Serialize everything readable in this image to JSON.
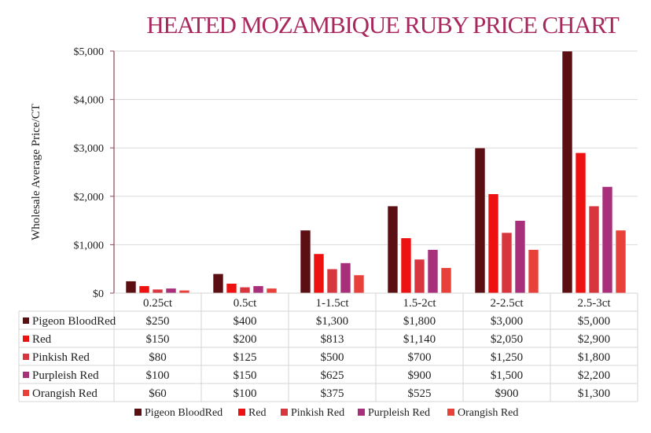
{
  "chart_data": {
    "type": "bar",
    "title": "HEATED MOZAMBIQUE RUBY PRICE CHART",
    "xlabel": "",
    "ylabel": "Wholesale Average Price/CT",
    "ylim": [
      0,
      5000
    ],
    "yticks": [
      "$0",
      "$1,000",
      "$2,000",
      "$3,000",
      "$4,000",
      "$5,000"
    ],
    "grid": true,
    "legend": "bottom",
    "categories": [
      "0.25ct",
      "0.5ct",
      "1-1.5ct",
      "1.5-2ct",
      "2-2.5ct",
      "2.5-3ct"
    ],
    "series": [
      {
        "name": "Pigeon BloodRed",
        "color": "#5c0f12",
        "values": [
          250,
          400,
          1300,
          1800,
          3000,
          5000
        ],
        "labels": [
          "$250",
          "$400",
          "$1,300",
          "$1,800",
          "$3,000",
          "$5,000"
        ]
      },
      {
        "name": "Red",
        "color": "#ee1111",
        "values": [
          150,
          200,
          813,
          1140,
          2050,
          2900
        ],
        "labels": [
          "$150",
          "$200",
          "$813",
          "$1,140",
          "$2,050",
          "$2,900"
        ]
      },
      {
        "name": "Pinkish Red",
        "color": "#d8363f",
        "values": [
          80,
          125,
          500,
          700,
          1250,
          1800
        ],
        "labels": [
          "$80",
          "$125",
          "$500",
          "$700",
          "$1,250",
          "$1,800"
        ]
      },
      {
        "name": "Purpleish Red",
        "color": "#a8307a",
        "values": [
          100,
          150,
          625,
          900,
          1500,
          2200
        ],
        "labels": [
          "$100",
          "$150",
          "$625",
          "$900",
          "$1,500",
          "$2,200"
        ]
      },
      {
        "name": "Orangish Red",
        "color": "#e8413a",
        "values": [
          60,
          100,
          375,
          525,
          900,
          1300
        ],
        "labels": [
          "$60",
          "$100",
          "$375",
          "$525",
          "$900",
          "$1,300"
        ]
      }
    ]
  }
}
